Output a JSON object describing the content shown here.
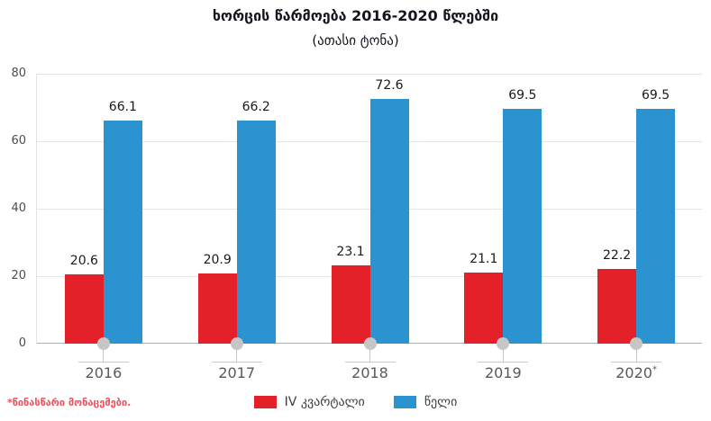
{
  "chart_data": {
    "type": "bar",
    "title": "ხორცის წარმოება 2016-2020 წლებში",
    "subtitle": "(ათასი ტონა)",
    "categories": [
      "2016",
      "2017",
      "2018",
      "2019",
      "2020*"
    ],
    "series": [
      {
        "name": "IV კვარტალი",
        "color": "#e42029",
        "values": [
          20.6,
          20.9,
          23.1,
          21.1,
          22.2
        ]
      },
      {
        "name": "წელი",
        "color": "#2b93d0",
        "values": [
          66.1,
          66.2,
          72.6,
          69.5,
          69.5
        ]
      }
    ],
    "ylim": [
      0,
      80
    ],
    "yticks": [
      0,
      20,
      40,
      60,
      80
    ],
    "grid": true,
    "legend_position": "bottom"
  },
  "footnote": "*წინასწარი მონაცემები.",
  "colors": {
    "bar_quarter": "#e42029",
    "bar_year": "#2b93d0",
    "title": "#15151f",
    "footnote": "#e8515a",
    "gridline": "#e6e6e6",
    "axis_line": "#b0b0b0",
    "marker_dot": "#c6c6c6",
    "tick_connector": "#c9c9c9",
    "x_label": "#595959",
    "y_label": "#4d4d4d",
    "value_label": "#1a1a1a"
  }
}
